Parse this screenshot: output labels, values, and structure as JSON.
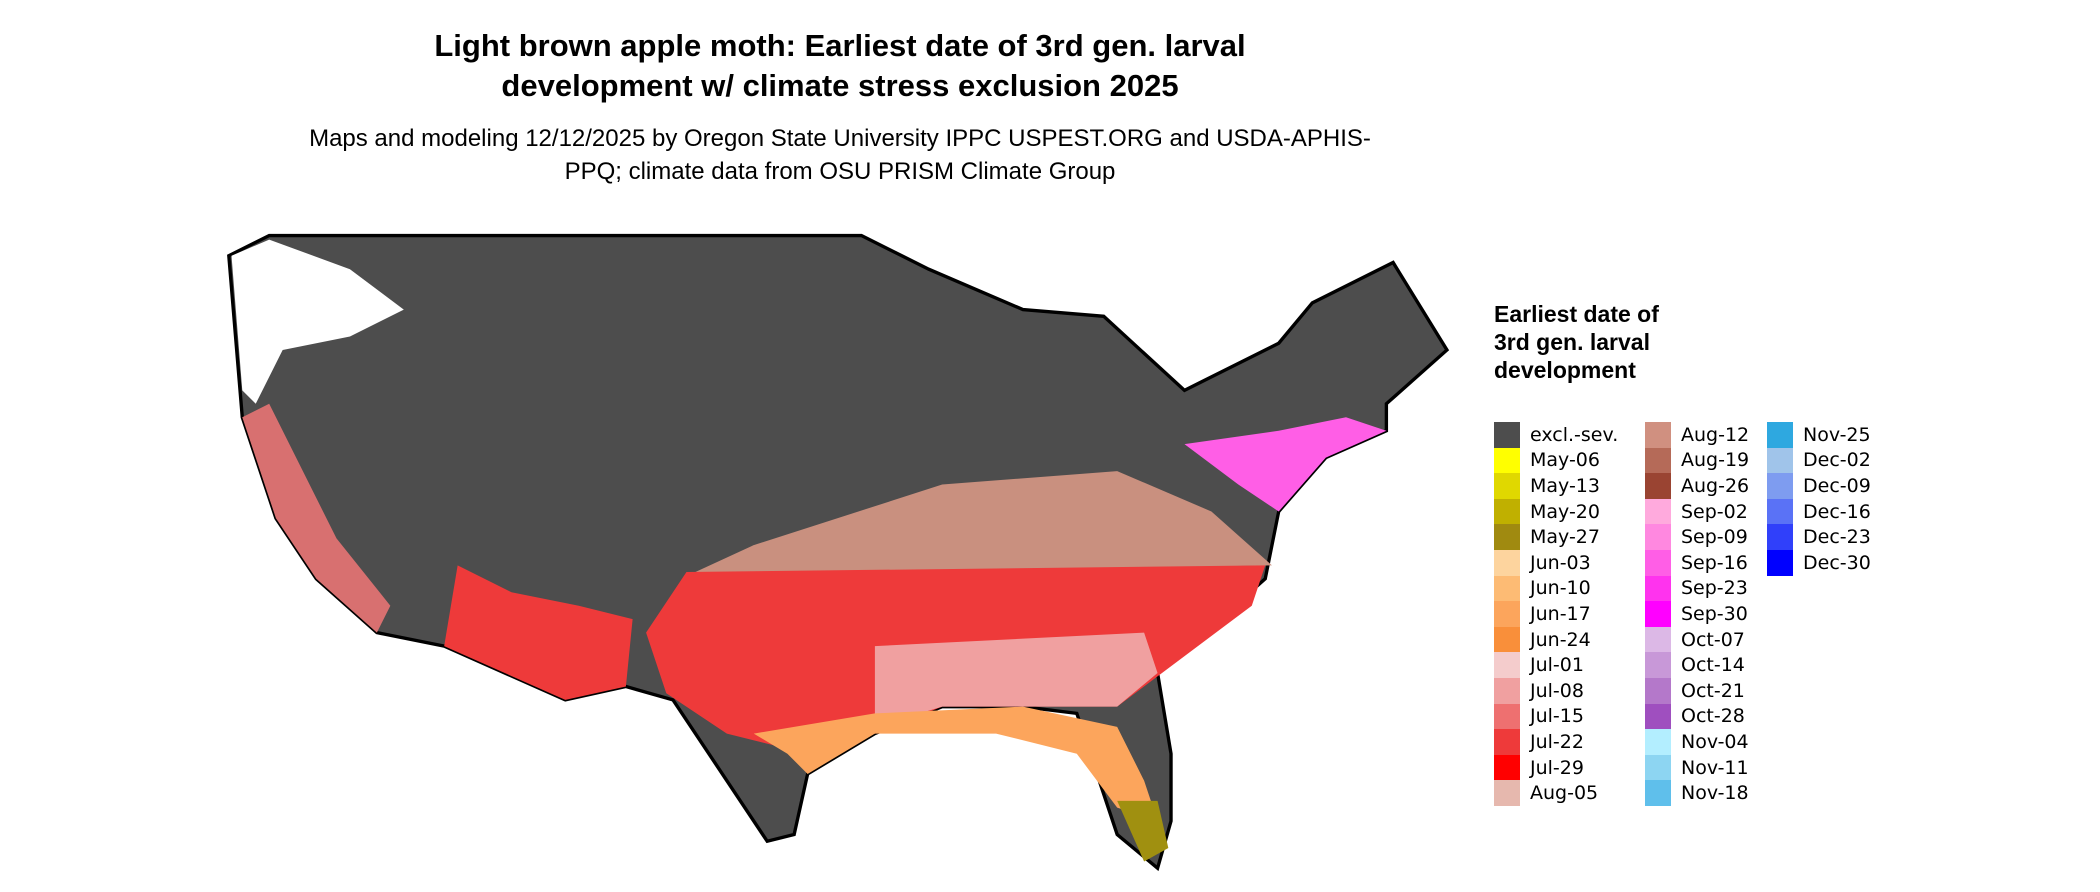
{
  "header": {
    "title": "Light brown apple moth: Earliest date of 3rd gen. larval development w/ climate stress exclusion 2025",
    "subtitle": "Maps and modeling 12/12/2025 by Oregon State University IPPC USPEST.ORG and USDA-APHIS-PPQ; climate data from OSU PRISM Climate Group"
  },
  "legend": {
    "title": "Earliest date of 3rd gen. larval development",
    "items": [
      {
        "label": "excl.-sev.",
        "color": "#4d4d4d"
      },
      {
        "label": "May-06",
        "color": "#ffff00"
      },
      {
        "label": "May-13",
        "color": "#e0d800"
      },
      {
        "label": "May-20",
        "color": "#c0b000"
      },
      {
        "label": "May-27",
        "color": "#a08a10"
      },
      {
        "label": "Jun-03",
        "color": "#fdd49e"
      },
      {
        "label": "Jun-10",
        "color": "#fdbb74"
      },
      {
        "label": "Jun-17",
        "color": "#fca55c"
      },
      {
        "label": "Jun-24",
        "color": "#f98f3a"
      },
      {
        "label": "Jul-01",
        "color": "#f4cccc"
      },
      {
        "label": "Jul-08",
        "color": "#f0a0a0"
      },
      {
        "label": "Jul-15",
        "color": "#ee7070"
      },
      {
        "label": "Jul-22",
        "color": "#ee3a3a"
      },
      {
        "label": "Jul-29",
        "color": "#ff0000"
      },
      {
        "label": "Aug-05",
        "color": "#e6b8ae"
      },
      {
        "label": "Aug-12",
        "color": "#d09080"
      },
      {
        "label": "Aug-19",
        "color": "#b56a58"
      },
      {
        "label": "Aug-26",
        "color": "#9a4432"
      },
      {
        "label": "Sep-02",
        "color": "#ffaadd"
      },
      {
        "label": "Sep-09",
        "color": "#ff88e0"
      },
      {
        "label": "Sep-16",
        "color": "#ff5ee6"
      },
      {
        "label": "Sep-23",
        "color": "#ff33ee"
      },
      {
        "label": "Sep-30",
        "color": "#ff00ff"
      },
      {
        "label": "Oct-07",
        "color": "#dcb8e6"
      },
      {
        "label": "Oct-14",
        "color": "#c898d8"
      },
      {
        "label": "Oct-21",
        "color": "#b478ca"
      },
      {
        "label": "Oct-28",
        "color": "#9f4fbf"
      },
      {
        "label": "Nov-04",
        "color": "#b3eeff"
      },
      {
        "label": "Nov-11",
        "color": "#8dd5f2"
      },
      {
        "label": "Nov-18",
        "color": "#5fbfeb"
      },
      {
        "label": "Nov-25",
        "color": "#2ea8e0"
      },
      {
        "label": "Dec-02",
        "color": "#a0c4ea"
      },
      {
        "label": "Dec-09",
        "color": "#7e9cf0"
      },
      {
        "label": "Dec-16",
        "color": "#5a72f6"
      },
      {
        "label": "Dec-23",
        "color": "#3040fa"
      },
      {
        "label": "Dec-30",
        "color": "#0000ff"
      }
    ]
  }
}
